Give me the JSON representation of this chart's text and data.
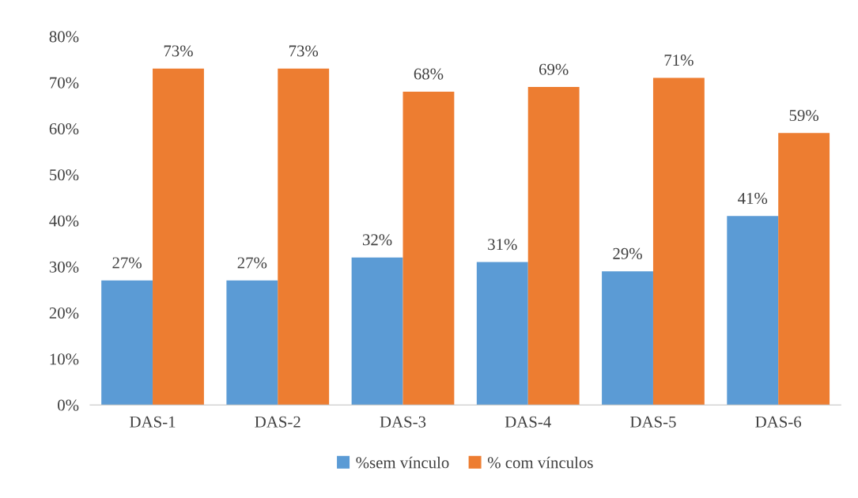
{
  "chart_data": {
    "type": "bar",
    "categories": [
      "DAS-1",
      "DAS-2",
      "DAS-3",
      "DAS-4",
      "DAS-5",
      "DAS-6"
    ],
    "series": [
      {
        "name": "%sem vínculo",
        "color": "#5b9bd5",
        "values": [
          27,
          27,
          32,
          31,
          29,
          41
        ],
        "value_labels": [
          "27%",
          "27%",
          "32%",
          "31%",
          "29%",
          "41%"
        ]
      },
      {
        "name": "% com vínculos",
        "color": "#ed7d31",
        "values": [
          73,
          73,
          68,
          69,
          71,
          59
        ],
        "value_labels": [
          "73%",
          "73%",
          "68%",
          "69%",
          "71%",
          "59%"
        ]
      }
    ],
    "ylim": [
      0,
      80
    ],
    "yticks": [
      {
        "value": 0,
        "label": "0%"
      },
      {
        "value": 10,
        "label": "10%"
      },
      {
        "value": 20,
        "label": "20%"
      },
      {
        "value": 30,
        "label": "30%"
      },
      {
        "value": 40,
        "label": "40%"
      },
      {
        "value": 50,
        "label": "50%"
      },
      {
        "value": 60,
        "label": "60%"
      },
      {
        "value": 70,
        "label": "70%"
      },
      {
        "value": 80,
        "label": "80%"
      }
    ],
    "grid": false,
    "legend": "bottom"
  }
}
